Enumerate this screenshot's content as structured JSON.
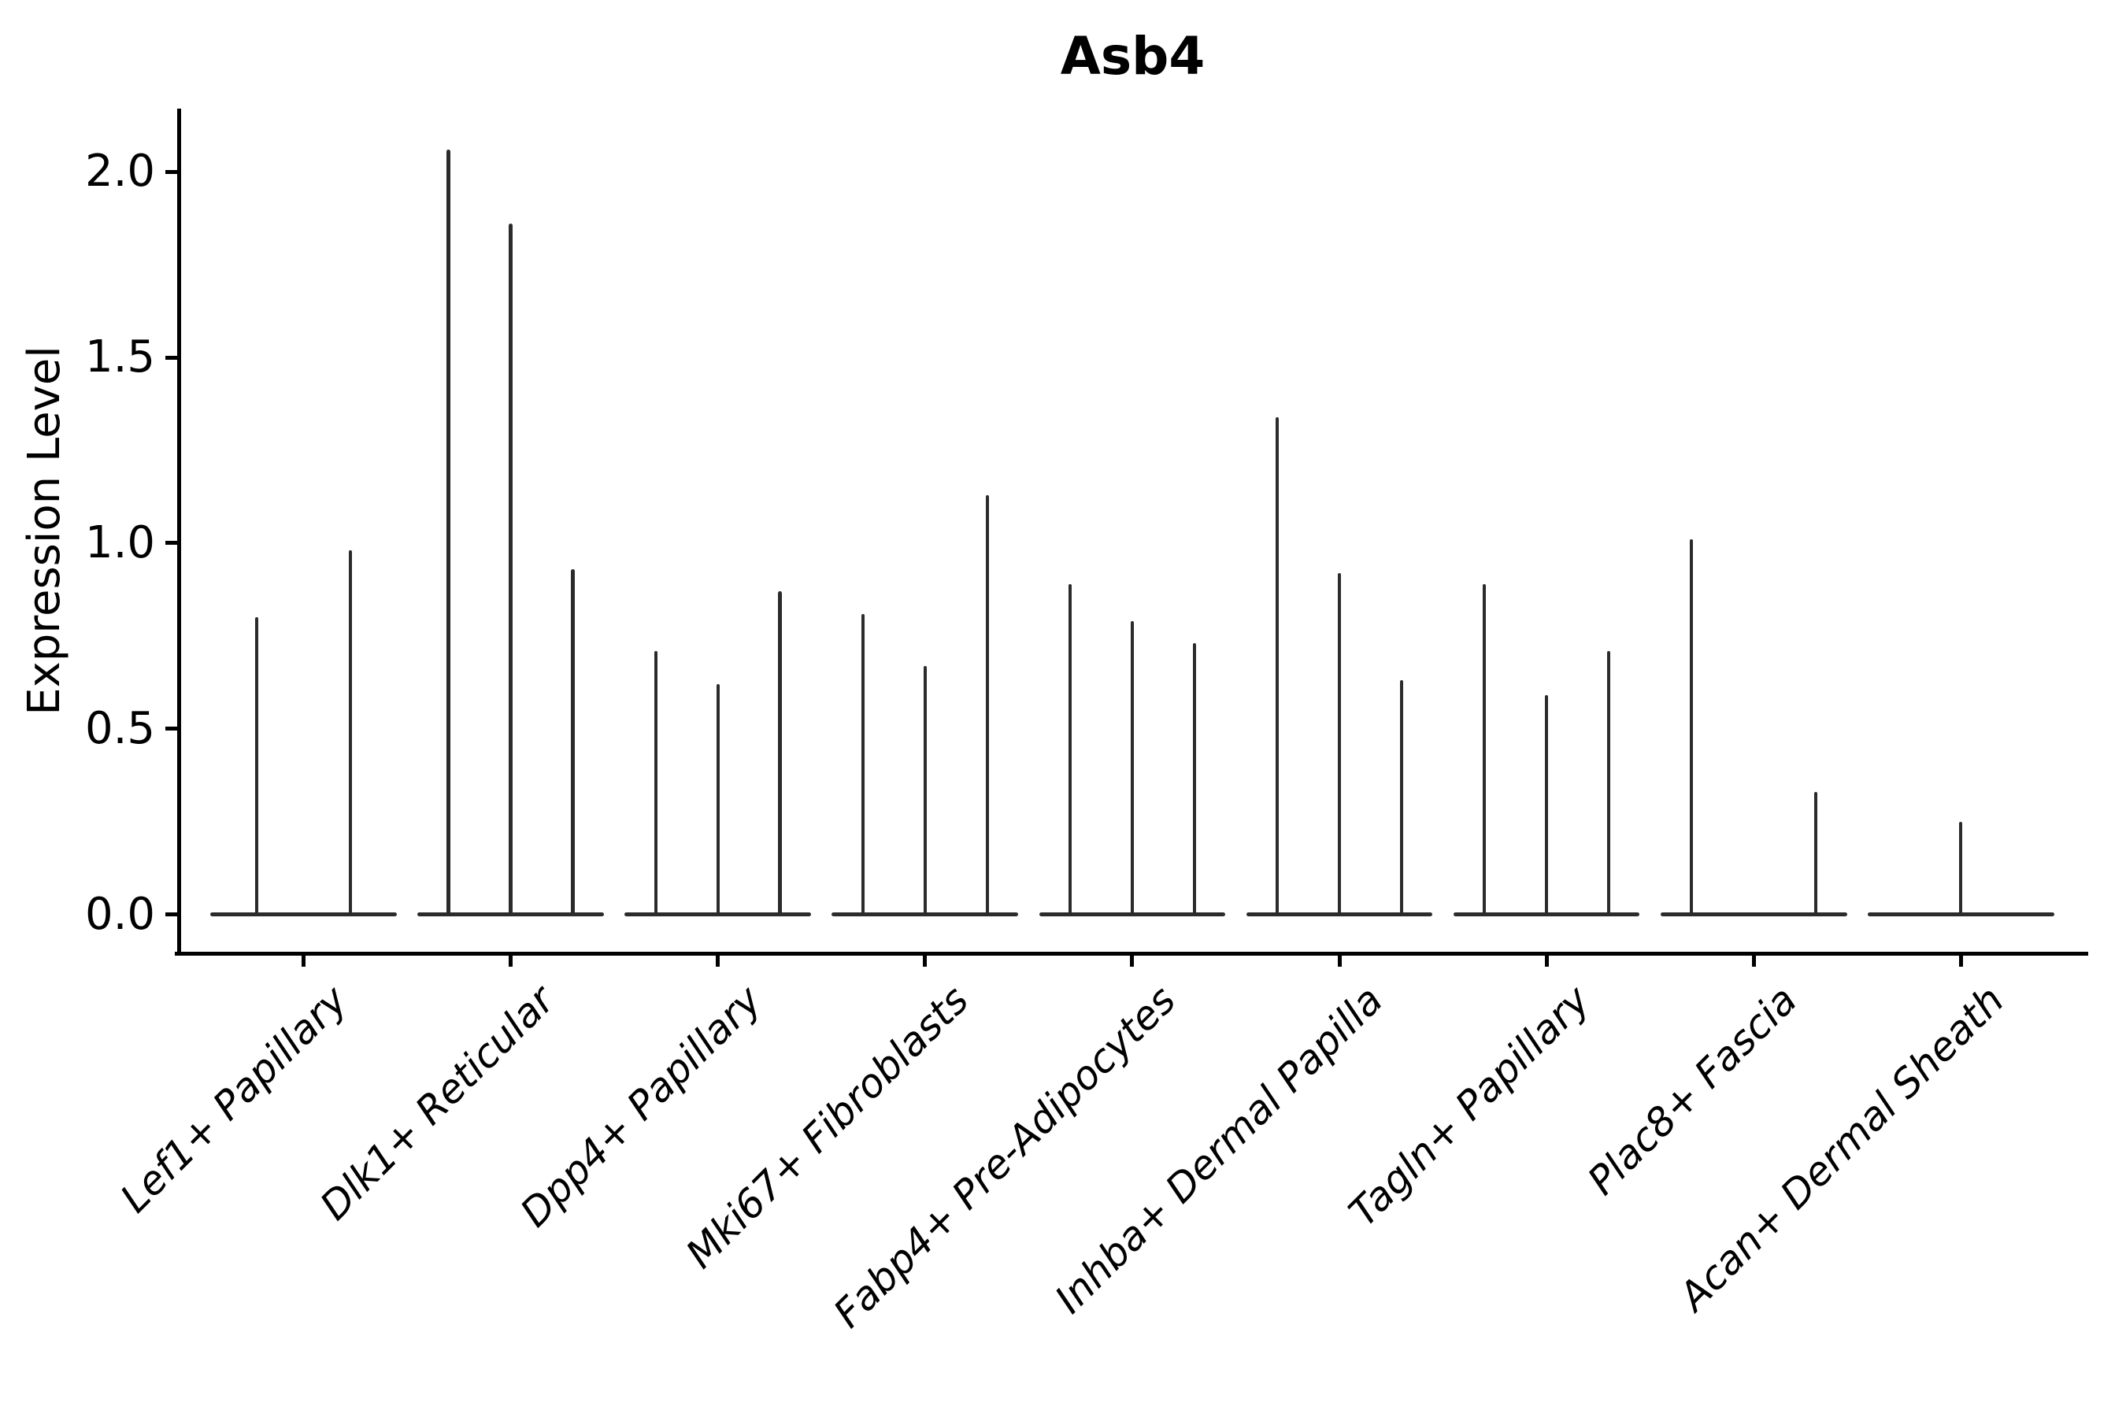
{
  "figure": {
    "title": "Asb4"
  },
  "y_axis": {
    "label": "Expression Level",
    "tick_labels": [
      "0.0",
      "0.5",
      "1.0",
      "1.5",
      "2.0"
    ]
  },
  "chart_data": {
    "type": "violin",
    "title": "Asb4",
    "xlabel": "",
    "ylabel": "Expression Level",
    "ylim": [
      -0.1,
      2.17
    ],
    "y_ticks": [
      0.0,
      0.5,
      1.0,
      1.5,
      2.0
    ],
    "grid": false,
    "legend_position": "none",
    "colors": {
      "violin": "#2b2b2b",
      "axis": "#000000",
      "background": "#ffffff"
    },
    "categories": [
      "Lef1+ Papillary",
      "Dlk1+ Reticular",
      "Dpp4+ Papillary",
      "Mki67+ Fibroblasts",
      "Fabp4+ Pre-Adipocytes",
      "Inhba+ Dermal Papilla",
      "Tagln+ Papillary",
      "Plac8+ Fascia",
      "Acan+ Dermal Sheath"
    ],
    "groups": [
      {
        "label": "Lef1+ Papillary",
        "violin_peak_values": [
          0.8,
          0.98
        ]
      },
      {
        "label": "Dlk1+ Reticular",
        "violin_peak_values": [
          2.06,
          1.86,
          0.93
        ]
      },
      {
        "label": "Dpp4+ Papillary",
        "violin_peak_values": [
          0.71,
          0.62,
          0.87
        ]
      },
      {
        "label": "Mki67+ Fibroblasts",
        "violin_peak_values": [
          0.81,
          0.67,
          1.13
        ]
      },
      {
        "label": "Fabp4+ Pre-Adipocytes",
        "violin_peak_values": [
          0.89,
          0.79,
          0.73
        ]
      },
      {
        "label": "Inhba+ Dermal Papilla",
        "violin_peak_values": [
          1.34,
          0.92,
          0.63
        ]
      },
      {
        "label": "Tagln+ Papillary",
        "violin_peak_values": [
          0.89,
          0.59,
          0.71
        ]
      },
      {
        "label": "Plac8+ Fascia",
        "violin_peak_values": [
          1.01,
          0.0,
          0.33
        ]
      },
      {
        "label": "Acan+ Dermal Sheath",
        "violin_peak_values": [
          0.0,
          0.25,
          0.0
        ]
      }
    ]
  }
}
